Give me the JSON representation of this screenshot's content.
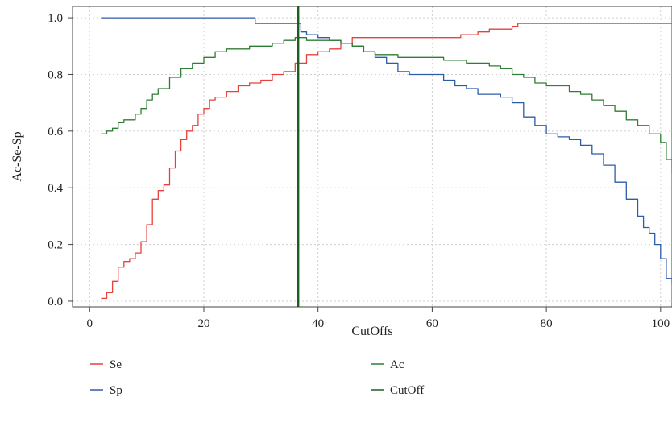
{
  "chart_data": {
    "type": "line",
    "xlabel": "CutOffs",
    "ylabel": "Ac-Se-Sp",
    "xlim": [
      -3,
      102
    ],
    "ylim": [
      -0.02,
      1.04
    ],
    "x_ticks": [
      0,
      20,
      40,
      60,
      80,
      100
    ],
    "y_ticks": [
      0.0,
      0.2,
      0.4,
      0.6,
      0.8,
      1.0
    ],
    "y_tick_labels": [
      "0.0",
      "0.2",
      "0.4",
      "0.6",
      "0.8",
      "1.0"
    ],
    "grid": true,
    "legend_position": "bottom",
    "series": [
      {
        "name": "Se",
        "color": "#e8413c",
        "x": [
          2,
          3,
          4,
          5,
          6,
          7,
          8,
          9,
          10,
          11,
          12,
          13,
          14,
          15,
          16,
          17,
          18,
          19,
          20,
          21,
          22,
          24,
          26,
          28,
          30,
          32,
          34,
          36,
          38,
          40,
          42,
          44,
          46,
          48,
          50,
          55,
          60,
          65,
          68,
          70,
          72,
          74,
          75,
          80,
          85,
          90,
          95,
          100,
          102
        ],
        "values": [
          0.01,
          0.03,
          0.07,
          0.12,
          0.14,
          0.15,
          0.17,
          0.21,
          0.27,
          0.36,
          0.39,
          0.41,
          0.47,
          0.53,
          0.57,
          0.6,
          0.62,
          0.66,
          0.68,
          0.71,
          0.72,
          0.74,
          0.76,
          0.77,
          0.78,
          0.8,
          0.81,
          0.84,
          0.87,
          0.88,
          0.89,
          0.91,
          0.93,
          0.93,
          0.93,
          0.93,
          0.93,
          0.94,
          0.95,
          0.96,
          0.96,
          0.97,
          0.98,
          0.98,
          0.98,
          0.98,
          0.98,
          0.98,
          0.99
        ]
      },
      {
        "name": "Sp",
        "color": "#2a5caa",
        "x": [
          2,
          10,
          20,
          28,
          29,
          33,
          36,
          37,
          38,
          40,
          42,
          44,
          46,
          48,
          50,
          52,
          54,
          56,
          60,
          62,
          64,
          66,
          68,
          70,
          72,
          74,
          76,
          78,
          80,
          82,
          84,
          86,
          88,
          90,
          92,
          94,
          96,
          97,
          98,
          99,
          100,
          101,
          102
        ],
        "values": [
          1.0,
          1.0,
          1.0,
          1.0,
          0.98,
          0.98,
          0.98,
          0.95,
          0.94,
          0.93,
          0.92,
          0.91,
          0.9,
          0.88,
          0.86,
          0.84,
          0.81,
          0.8,
          0.8,
          0.78,
          0.76,
          0.75,
          0.73,
          0.73,
          0.72,
          0.7,
          0.65,
          0.62,
          0.59,
          0.58,
          0.57,
          0.55,
          0.52,
          0.48,
          0.42,
          0.36,
          0.3,
          0.26,
          0.24,
          0.2,
          0.15,
          0.08,
          0.06
        ]
      },
      {
        "name": "Ac",
        "color": "#2e7d32",
        "x": [
          2,
          3,
          4,
          5,
          6,
          8,
          9,
          10,
          11,
          12,
          14,
          16,
          18,
          20,
          22,
          24,
          26,
          28,
          30,
          32,
          34,
          36,
          38,
          40,
          42,
          44,
          46,
          48,
          50,
          54,
          58,
          62,
          66,
          70,
          72,
          74,
          76,
          78,
          80,
          84,
          86,
          88,
          90,
          92,
          94,
          96,
          98,
          100,
          101,
          102
        ],
        "values": [
          0.59,
          0.6,
          0.61,
          0.63,
          0.64,
          0.66,
          0.68,
          0.71,
          0.73,
          0.75,
          0.79,
          0.82,
          0.84,
          0.86,
          0.88,
          0.89,
          0.89,
          0.9,
          0.9,
          0.91,
          0.92,
          0.93,
          0.92,
          0.92,
          0.92,
          0.91,
          0.9,
          0.88,
          0.87,
          0.86,
          0.86,
          0.85,
          0.84,
          0.83,
          0.82,
          0.8,
          0.79,
          0.77,
          0.76,
          0.74,
          0.73,
          0.71,
          0.69,
          0.67,
          0.64,
          0.62,
          0.59,
          0.56,
          0.5,
          0.45
        ]
      },
      {
        "name": "CutOff",
        "color": "#1b5e20",
        "x": [
          36.5,
          36.5
        ],
        "values": [
          -0.02,
          1.04
        ]
      }
    ]
  }
}
